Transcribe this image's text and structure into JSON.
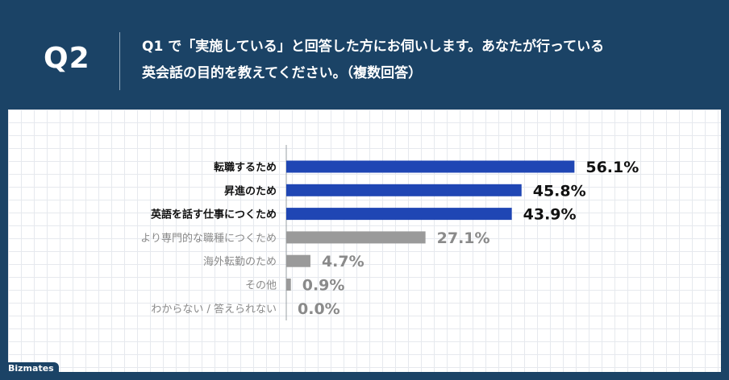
{
  "header": {
    "q_label": "Q2",
    "question_line1": "Q1 で「実施している」と回答した方にお伺いします。あなたが行っている",
    "question_line2": "英会話の目的を教えてください。（複数回答）"
  },
  "brand": "Bizmates",
  "colors": {
    "header_bg": "#1b4366",
    "highlight_bar": "#1f46b4",
    "muted_bar": "#9a9a9a",
    "highlight_text": "#111111",
    "muted_text": "#8a8a8a"
  },
  "chart_data": {
    "type": "bar",
    "orientation": "horizontal",
    "categories": [
      "転職するため",
      "昇進のため",
      "英語を話す仕事につくため",
      "より専門的な職種につくため",
      "海外転勤のため",
      "その他",
      "わからない / 答えられない"
    ],
    "values": [
      56.1,
      45.8,
      43.9,
      27.1,
      4.7,
      0.9,
      0.0
    ],
    "value_labels": [
      "56.1%",
      "45.8%",
      "43.9%",
      "27.1%",
      "4.7%",
      "0.9%",
      "0.0%"
    ],
    "highlight": [
      true,
      true,
      true,
      false,
      false,
      false,
      false
    ],
    "unit": "%",
    "xlim": [
      0,
      100
    ],
    "grid": false
  }
}
